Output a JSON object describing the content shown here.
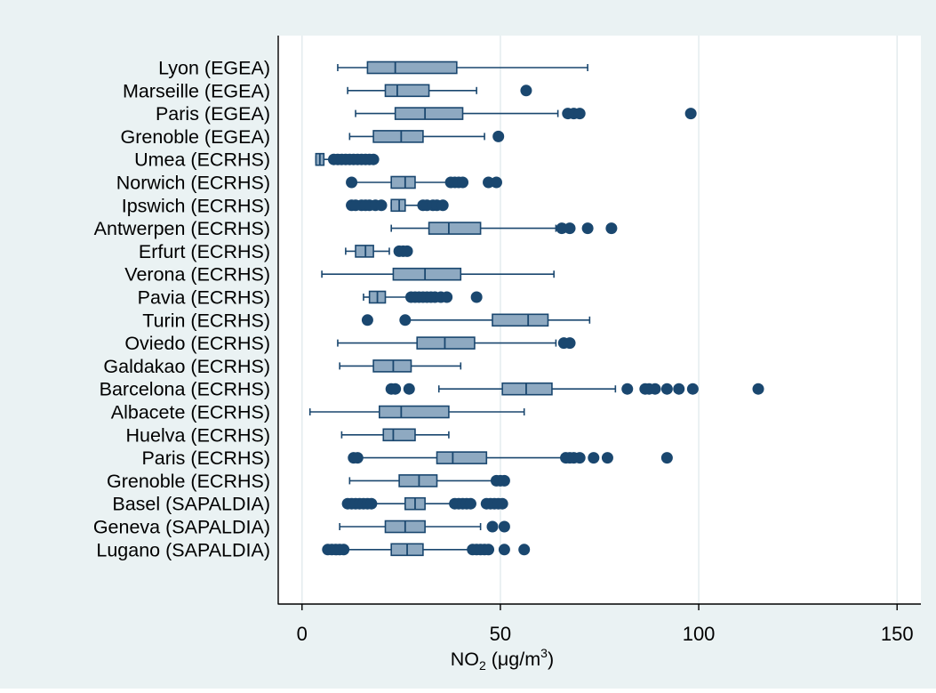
{
  "colors": {
    "outer_background": "#eaf2f3",
    "plot_background": "#ffffff",
    "box_fill": "#8ea9c1",
    "box_stroke": "#1a476f",
    "whisker": "#1a476f",
    "outlier": "#1a476f",
    "gridline": "#e3ecee",
    "axis": "#000000",
    "text": "#000000"
  },
  "chart_data": {
    "type": "box",
    "orientation": "horizontal",
    "xlabel": {
      "main": "NO",
      "sub": "2",
      "units_prefix": " (μg/m",
      "units_sup": "3",
      "units_suffix": ")"
    },
    "xlim": [
      -6,
      156
    ],
    "xticks": [
      0,
      50,
      100,
      150
    ],
    "xtick_labels": [
      "0",
      "50",
      "100",
      "150"
    ],
    "grid": {
      "vertical": [
        0,
        50,
        100,
        150
      ]
    },
    "legend": "none",
    "categories": [
      "Lyon (EGEA)",
      "Marseille (EGEA)",
      "Paris (EGEA)",
      "Grenoble (EGEA)",
      "Umea (ECRHS)",
      "Norwich (ECRHS)",
      "Ipswich (ECRHS)",
      "Antwerpen (ECRHS)",
      "Erfurt (ECRHS)",
      "Verona (ECRHS)",
      "Pavia (ECRHS)",
      "Turin (ECRHS)",
      "Oviedo (ECRHS)",
      "Galdakao (ECRHS)",
      "Barcelona (ECRHS)",
      "Albacete (ECRHS)",
      "Huelva (ECRHS)",
      "Paris (ECRHS)",
      "Grenoble (ECRHS)",
      "Basel (SAPALDIA)",
      "Geneva (SAPALDIA)",
      "Lugano (SAPALDIA)"
    ],
    "boxes": [
      {
        "wlo": 9,
        "q1": 16.5,
        "med": 23.5,
        "q3": 39,
        "whi": 72,
        "out": []
      },
      {
        "wlo": 11.5,
        "q1": 21,
        "med": 24,
        "q3": 32,
        "whi": 44,
        "out": [
          56.5
        ]
      },
      {
        "wlo": 13.5,
        "q1": 23.5,
        "med": 31,
        "q3": 40.5,
        "whi": 64.5,
        "out": [
          67,
          68.5,
          70,
          98
        ]
      },
      {
        "wlo": 12,
        "q1": 18,
        "med": 25,
        "q3": 30.5,
        "whi": 46,
        "out": [
          49.5
        ]
      },
      {
        "wlo": 3.5,
        "q1": 3.5,
        "med": 4.5,
        "q3": 5.5,
        "whi": 7.5,
        "out": [
          8,
          9,
          10,
          11,
          12,
          13,
          14,
          15,
          16,
          17,
          18
        ]
      },
      {
        "wlo": 13,
        "q1": 22.5,
        "med": 26,
        "q3": 28.5,
        "whi": 37,
        "out": [
          12.5,
          37.5,
          38.5,
          39.5,
          40.5,
          47,
          49
        ]
      },
      {
        "wlo": 22.5,
        "q1": 22.5,
        "med": 24.5,
        "q3": 26,
        "whi": 29.5,
        "out": [
          12.5,
          13.5,
          15,
          16,
          17,
          18.5,
          20,
          30.5,
          31.5,
          33,
          34,
          35.5
        ]
      },
      {
        "wlo": 22.5,
        "q1": 32,
        "med": 37,
        "q3": 45,
        "whi": 64,
        "out": [
          65.5,
          67.5,
          72,
          78
        ]
      },
      {
        "wlo": 11,
        "q1": 13.5,
        "med": 16,
        "q3": 18,
        "whi": 22,
        "out": [
          24.5,
          25.5,
          26.5
        ]
      },
      {
        "wlo": 5,
        "q1": 23,
        "med": 31,
        "q3": 40,
        "whi": 63.5,
        "out": []
      },
      {
        "wlo": 15.5,
        "q1": 17,
        "med": 19,
        "q3": 21,
        "whi": 26.5,
        "out": [
          27.5,
          28.5,
          29.5,
          30.5,
          31.5,
          32.5,
          33.5,
          35,
          36.5,
          44
        ]
      },
      {
        "wlo": 27,
        "q1": 48,
        "med": 57,
        "q3": 62,
        "whi": 72.5,
        "out": [
          16.5,
          26
        ]
      },
      {
        "wlo": 9,
        "q1": 29,
        "med": 36,
        "q3": 43.5,
        "whi": 64,
        "out": [
          66,
          67.5
        ]
      },
      {
        "wlo": 9.5,
        "q1": 18,
        "med": 23,
        "q3": 27.5,
        "whi": 40,
        "out": []
      },
      {
        "wlo": 34.5,
        "q1": 50.5,
        "med": 56.5,
        "q3": 63,
        "whi": 79,
        "out": [
          22.5,
          23.5,
          27,
          82,
          86.5,
          87.5,
          89,
          92,
          95,
          98.5,
          115
        ]
      },
      {
        "wlo": 2,
        "q1": 19.5,
        "med": 25,
        "q3": 37,
        "whi": 56,
        "out": []
      },
      {
        "wlo": 10,
        "q1": 20.5,
        "med": 23,
        "q3": 28.5,
        "whi": 37,
        "out": []
      },
      {
        "wlo": 14,
        "q1": 34,
        "med": 38,
        "q3": 46.5,
        "whi": 65.5,
        "out": [
          13,
          14,
          66.5,
          67.5,
          68.5,
          70,
          73.5,
          77,
          92
        ]
      },
      {
        "wlo": 12,
        "q1": 24.5,
        "med": 29.5,
        "q3": 34,
        "whi": 48,
        "out": [
          49,
          50,
          51
        ]
      },
      {
        "wlo": 18,
        "q1": 26,
        "med": 28.5,
        "q3": 31,
        "whi": 37.5,
        "out": [
          11.5,
          12.5,
          13.5,
          14.5,
          15.5,
          16.5,
          17.5,
          38.5,
          39.5,
          40.5,
          41.5,
          42.5,
          46.5,
          47.5,
          48.5,
          49.5,
          50.5
        ]
      },
      {
        "wlo": 9.5,
        "q1": 21,
        "med": 26,
        "q3": 31,
        "whi": 45,
        "out": [
          48,
          51
        ]
      },
      {
        "wlo": 11.5,
        "q1": 22.5,
        "med": 26.5,
        "q3": 30.5,
        "whi": 42,
        "out": [
          6.5,
          7.5,
          8.5,
          9.5,
          10.5,
          43,
          44,
          45,
          46,
          47,
          51,
          56
        ]
      }
    ]
  }
}
